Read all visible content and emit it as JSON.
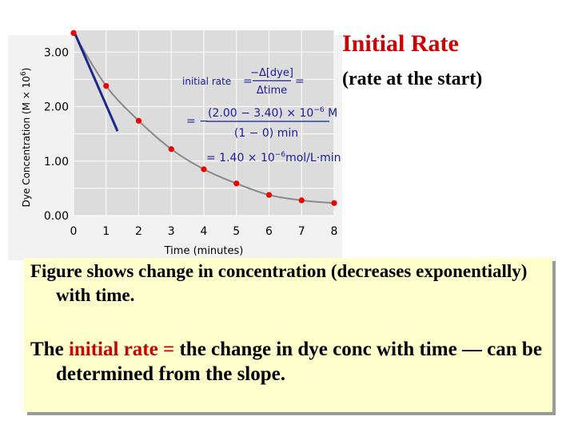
{
  "title": "Initial Rate",
  "subtitle": "(rate at the start)",
  "paragraph1": "Figure shows change in concentration (decreases exponentially) with time.",
  "paragraph2": {
    "lead": "The ",
    "highlight": "initial rate =",
    "rest": " the change in dye conc with time — can be determined from the slope."
  },
  "annotation": {
    "label": "initial rate",
    "eq1": "=",
    "num1": "−Δ[dye]",
    "den1": "Δtime",
    "eq2": "=",
    "eq3": "= −",
    "num2": "(2.00 − 3.40) × 10",
    "num2_exp": "−6",
    "num2_unit": " M",
    "den2": "(1 − 0) min",
    "result": "= 1.40 × 10",
    "result_exp": "−6",
    "result_unit": "mol/L·min"
  },
  "colors": {
    "title": "#cc0000",
    "highlight": "#cc0000",
    "points": "#ee0000",
    "tangent": "#1a2a8c",
    "curve": "#888888",
    "plot_bg": "#dcdcdc",
    "grid": "#ffffff",
    "textbox_bg": "#ffffcc"
  },
  "chart_data": {
    "type": "scatter",
    "xlabel": "Time (minutes)",
    "ylabel": "Dye Concentration (M × 10",
    "ylabel_exp": "6",
    "ylabel_close": ")",
    "xlim": [
      0,
      8
    ],
    "ylim": [
      0,
      3.4
    ],
    "x_ticks": [
      0,
      1,
      2,
      3,
      4,
      5,
      6,
      7,
      8
    ],
    "x_tick_labels": [
      "0",
      "1",
      "2",
      "3",
      "4",
      "5",
      "6",
      "7",
      "8"
    ],
    "y_ticks": [
      0,
      1,
      2,
      3
    ],
    "y_tick_labels": [
      "0.00",
      "1.00",
      "2.00",
      "3.00"
    ],
    "grid": true,
    "series": [
      {
        "x": [
          0,
          1,
          2,
          3,
          4,
          5,
          6,
          7,
          8
        ],
        "y": [
          3.35,
          2.38,
          1.74,
          1.22,
          0.85,
          0.59,
          0.38,
          0.28,
          0.23
        ]
      }
    ],
    "fit_curve": "exponential decay",
    "tangent": {
      "x": [
        0,
        1.35
      ],
      "y": [
        3.4,
        1.55
      ]
    }
  }
}
